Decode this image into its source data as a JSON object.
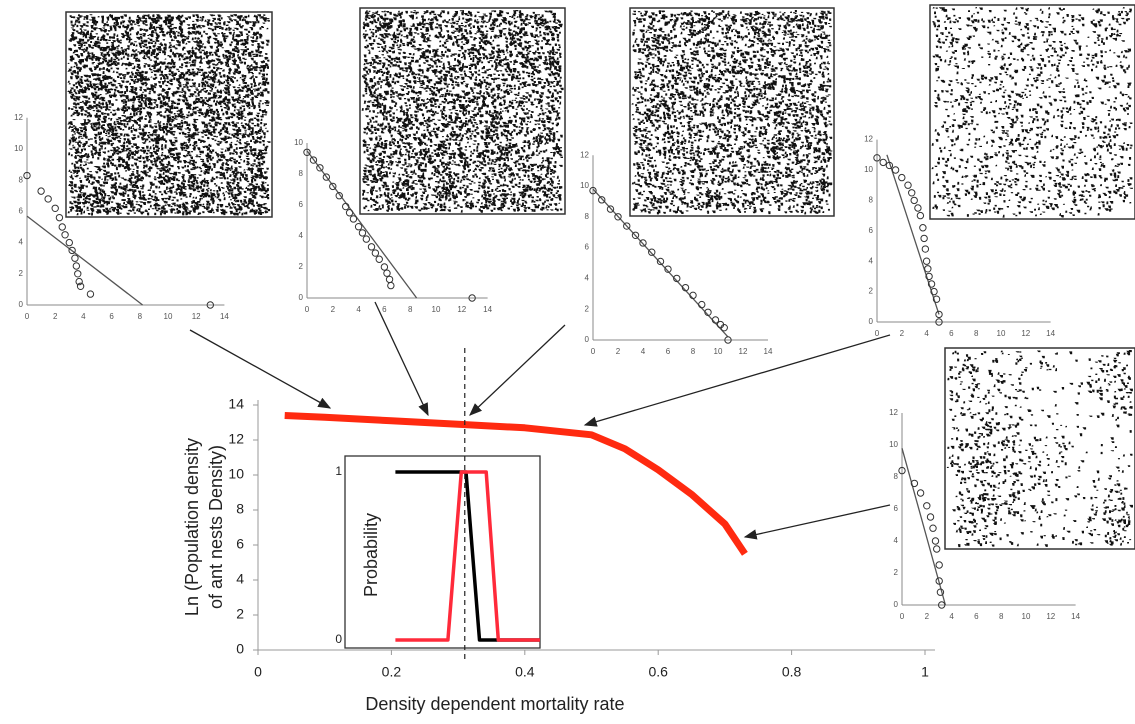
{
  "chart_data": [
    {
      "type": "line",
      "x_label": "Density dependent mortality rate",
      "y_label": [
        "Ln (Population density",
        "of ant nests Density)"
      ],
      "xlim": [
        0,
        1
      ],
      "ylim": [
        0,
        14
      ],
      "xticks": [
        0,
        0.2,
        0.4,
        0.6,
        0.8,
        1
      ],
      "yticks": [
        0,
        2,
        4,
        6,
        8,
        10,
        12,
        14
      ],
      "marker_x": 0.31,
      "series": [
        {
          "color": "#ff2a10",
          "x": [
            0.04,
            0.1,
            0.2,
            0.3,
            0.4,
            0.5,
            0.55,
            0.6,
            0.65,
            0.7,
            0.73
          ],
          "values": [
            13.4,
            13.3,
            13.1,
            12.9,
            12.7,
            12.3,
            11.5,
            10.3,
            8.9,
            7.2,
            5.5
          ]
        }
      ]
    },
    {
      "type": "line",
      "y_label": "Probability",
      "xlim": [
        0.13,
        0.42
      ],
      "ylim": [
        0,
        1
      ],
      "yticks": [
        0,
        1
      ],
      "series": [
        {
          "color": "#000000",
          "x": [
            0.205,
            0.31,
            0.33,
            0.42
          ],
          "values": [
            1,
            1,
            0,
            0
          ]
        },
        {
          "color": "#ff2a3a",
          "x": [
            0.205,
            0.283,
            0.303,
            0.34,
            0.358,
            0.42
          ],
          "values": [
            0,
            0,
            1,
            1,
            0,
            0
          ]
        }
      ]
    },
    {
      "type": "scatter",
      "xticks": [
        0,
        2,
        4,
        6,
        8,
        10,
        12,
        14
      ],
      "yticks": [
        0,
        2,
        4,
        6,
        8,
        10,
        12
      ],
      "x": [
        0,
        1,
        1.5,
        2,
        2.3,
        2.5,
        2.7,
        3,
        3.2,
        3.4,
        3.5,
        3.6,
        3.7,
        3.8,
        4.5,
        13
      ],
      "values": [
        8.3,
        7.3,
        6.8,
        6.2,
        5.6,
        5,
        4.5,
        4,
        3.5,
        3,
        2.5,
        2,
        1.5,
        1.2,
        0.7,
        0
      ],
      "fit": {
        "x": [
          0,
          8.2
        ],
        "values": [
          5.7,
          0
        ]
      }
    },
    {
      "type": "scatter",
      "xticks": [
        0,
        2,
        4,
        6,
        8,
        10,
        12,
        14
      ],
      "yticks": [
        0,
        2,
        4,
        6,
        8,
        10
      ],
      "x": [
        0,
        0.5,
        1,
        1.5,
        2,
        2.5,
        3,
        3.3,
        3.6,
        4,
        4.3,
        4.6,
        5,
        5.3,
        5.6,
        6,
        6.2,
        6.4,
        6.5,
        12.8
      ],
      "values": [
        9.4,
        8.9,
        8.4,
        7.8,
        7.2,
        6.6,
        5.9,
        5.5,
        5.1,
        4.6,
        4.2,
        3.8,
        3.3,
        2.9,
        2.5,
        2,
        1.6,
        1.2,
        0.8,
        0
      ],
      "fit": {
        "x": [
          0,
          8.5
        ],
        "values": [
          9.5,
          0
        ]
      }
    },
    {
      "type": "scatter",
      "xticks": [
        0,
        2,
        4,
        6,
        8,
        10,
        12,
        14
      ],
      "yticks": [
        0,
        2,
        4,
        6,
        8,
        10,
        12
      ],
      "x": [
        0,
        0.7,
        1.4,
        2,
        2.7,
        3.4,
        4,
        4.7,
        5.4,
        6,
        6.7,
        7.4,
        8,
        8.7,
        9.2,
        9.8,
        10.2,
        10.5,
        10.8
      ],
      "values": [
        9.7,
        9.1,
        8.5,
        8,
        7.4,
        6.8,
        6.3,
        5.7,
        5.1,
        4.6,
        4,
        3.4,
        2.9,
        2.3,
        1.8,
        1.3,
        1,
        0.8,
        0
      ],
      "fit": {
        "x": [
          0,
          10.8
        ],
        "values": [
          9.8,
          0.2
        ]
      }
    },
    {
      "type": "scatter",
      "xticks": [
        0,
        2,
        4,
        6,
        8,
        10,
        12,
        14
      ],
      "yticks": [
        0,
        2,
        4,
        6,
        8,
        10,
        12
      ],
      "x": [
        0,
        0.5,
        1,
        1.5,
        2,
        2.5,
        2.8,
        3,
        3.3,
        3.5,
        3.7,
        3.8,
        3.9,
        4,
        4.1,
        4.2,
        4.4,
        4.6,
        4.8,
        5,
        5
      ],
      "values": [
        10.8,
        10.5,
        10.3,
        10,
        9.5,
        9,
        8.5,
        8,
        7.5,
        7,
        6.2,
        5.5,
        4.8,
        4,
        3.5,
        3,
        2.5,
        2,
        1.5,
        0.5,
        0
      ],
      "fit": {
        "x": [
          0.8,
          5
        ],
        "values": [
          11,
          0.5
        ]
      }
    },
    {
      "type": "scatter",
      "xticks": [
        0,
        2,
        4,
        6,
        8,
        10,
        12,
        14
      ],
      "yticks": [
        0,
        2,
        4,
        6,
        8,
        10,
        12
      ],
      "x": [
        0,
        1,
        1.5,
        2,
        2.3,
        2.5,
        2.7,
        2.8,
        3,
        3,
        3.1,
        3.2
      ],
      "values": [
        8.4,
        7.6,
        7,
        6.2,
        5.5,
        4.8,
        4,
        3.5,
        2.5,
        1.5,
        0.8,
        0
      ],
      "fit": {
        "x": [
          0,
          3.5
        ],
        "values": [
          9.8,
          0
        ]
      }
    }
  ]
}
